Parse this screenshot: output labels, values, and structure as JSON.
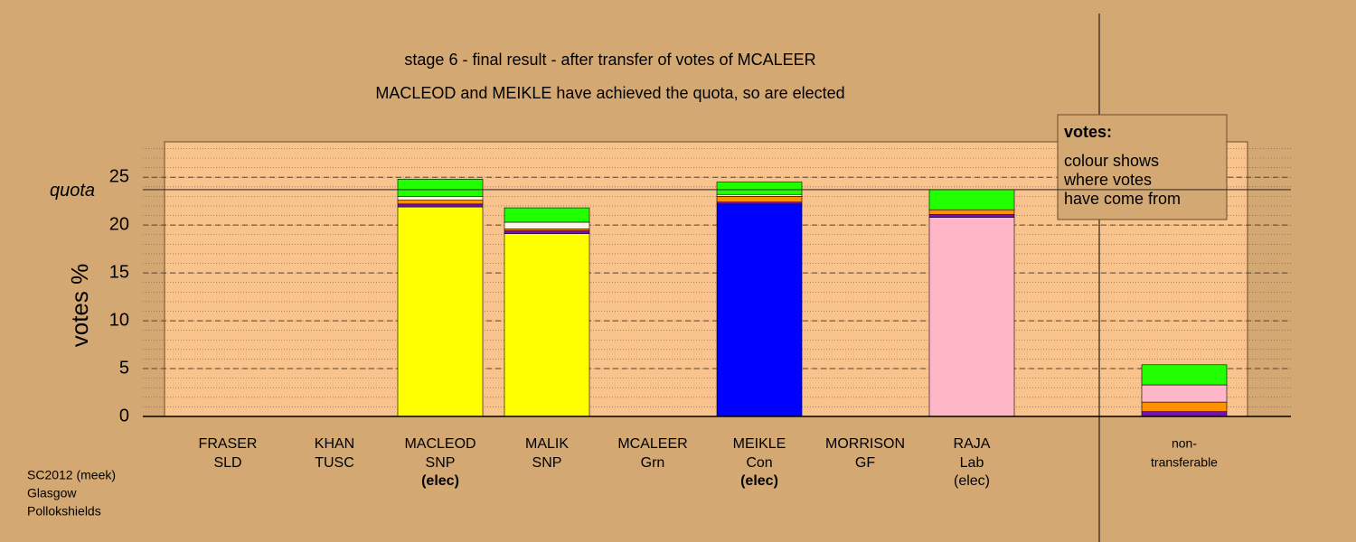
{
  "chart_data": {
    "type": "stacked_bar",
    "title": "stage 6 - final result - after transfer of votes of MCALEER",
    "subtitle": "MACLEOD and MEIKLE have achieved the quota, so are elected",
    "y_label": "votes %",
    "categories": [
      "FRASER",
      "KHAN",
      "MACLEOD",
      "MALIK",
      "MCALEER",
      "MEIKLE",
      "MORRISON",
      "RAJA",
      "non-"
    ],
    "parties": [
      "SLD",
      "TUSC",
      "SNP",
      "SNP",
      "Grn",
      "Con",
      "GF",
      "Lab",
      "transferable"
    ],
    "status": [
      null,
      null,
      "(elec)",
      null,
      null,
      "(elec)",
      null,
      "(elec)",
      null
    ],
    "status_bold": [
      false,
      false,
      true,
      false,
      false,
      true,
      false,
      false,
      false
    ],
    "series": [
      {
        "color": "#ffff00",
        "values": [
          0,
          0,
          21.9,
          19.1,
          0,
          0,
          0,
          0,
          0
        ]
      },
      {
        "color": "#0000ff",
        "values": [
          0,
          0,
          0,
          0,
          0,
          22.2,
          0,
          0,
          0
        ]
      },
      {
        "color": "#ffb6c6",
        "values": [
          0,
          0,
          0,
          0,
          0,
          0,
          0,
          20.8,
          0
        ]
      },
      {
        "color": "#7a10b0",
        "values": [
          0,
          0,
          0.3,
          0.3,
          0,
          0.2,
          0,
          0.3,
          0.5
        ]
      },
      {
        "color": "#ff9000",
        "values": [
          0,
          0,
          0.4,
          0.2,
          0,
          0.6,
          0,
          0.5,
          1.0
        ]
      },
      {
        "color": "#fff4e6",
        "values": [
          0,
          0,
          0.4,
          0.7,
          0,
          0.2,
          0,
          0,
          0
        ]
      },
      {
        "color": "#ffb6c6",
        "values": [
          0,
          0,
          0,
          0,
          0,
          0,
          0,
          0,
          1.8
        ]
      },
      {
        "color": "#22ff00",
        "values": [
          0,
          0,
          1.8,
          1.5,
          0,
          1.3,
          0,
          2.1,
          2.1
        ]
      }
    ],
    "ylim": [
      0,
      28.7
    ],
    "yticks": [
      0,
      5,
      10,
      15,
      20,
      25
    ],
    "minor_grid_step": 1,
    "quota": {
      "value": 23.7,
      "label": "quota"
    },
    "info_box": {
      "heading": "votes:",
      "lines": [
        "colour shows",
        "where votes",
        "have come from"
      ]
    },
    "footer": [
      "SC2012 (meek)",
      "Glasgow",
      "Pollokshields"
    ]
  }
}
